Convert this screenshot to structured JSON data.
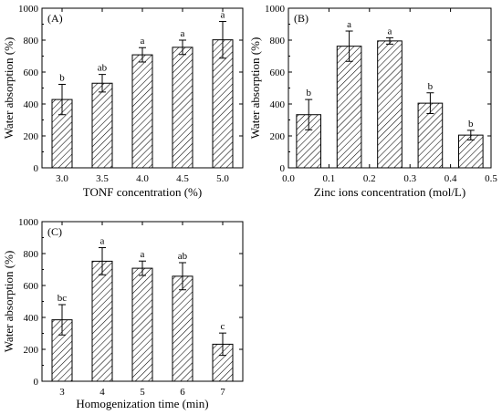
{
  "chart_data": [
    {
      "type": "bar",
      "panel_label": "(A)",
      "xlabel": "TONF concentration (%)",
      "ylabel": "Water absorption (%)",
      "x_numeric": false,
      "categories": [
        "3.0",
        "3.5",
        "4.0",
        "4.5",
        "5.0"
      ],
      "values": [
        428,
        530,
        708,
        755,
        802
      ],
      "errors": [
        95,
        55,
        45,
        45,
        115
      ],
      "letters": [
        "b",
        "ab",
        "a",
        "a",
        "a"
      ],
      "ylim": [
        0,
        1000
      ],
      "yticks": [
        0,
        200,
        400,
        600,
        800,
        1000
      ],
      "grid": false,
      "bar_fill": "#ffffff",
      "hatch_color": "#000000"
    },
    {
      "type": "bar",
      "panel_label": "(B)",
      "xlabel": "Zinc ions concentration (mol/L)",
      "ylabel": "Water absorption (%)",
      "x_numeric": true,
      "x": [
        0.05,
        0.15,
        0.25,
        0.35,
        0.45
      ],
      "xlim": [
        0.0,
        0.5
      ],
      "xticks": [
        "0.0",
        "0.1",
        "0.2",
        "0.3",
        "0.4",
        "0.5"
      ],
      "bar_width": 0.06,
      "values": [
        333,
        762,
        795,
        405,
        205
      ],
      "errors": [
        95,
        95,
        20,
        65,
        30
      ],
      "letters": [
        "b",
        "a",
        "a",
        "b",
        "b"
      ],
      "ylim": [
        0,
        1000
      ],
      "yticks": [
        0,
        200,
        400,
        600,
        800,
        1000
      ],
      "grid": false,
      "bar_fill": "#ffffff",
      "hatch_color": "#000000"
    },
    {
      "type": "bar",
      "panel_label": "(C)",
      "xlabel": "Homogenization time (min)",
      "ylabel": "Water absorption (%)",
      "x_numeric": false,
      "categories": [
        "3",
        "4",
        "5",
        "6",
        "7"
      ],
      "values": [
        385,
        752,
        708,
        658,
        232
      ],
      "errors": [
        95,
        85,
        45,
        85,
        70
      ],
      "letters": [
        "bc",
        "a",
        "a",
        "ab",
        "c"
      ],
      "ylim": [
        0,
        1000
      ],
      "yticks": [
        0,
        200,
        400,
        600,
        800,
        1000
      ],
      "grid": false,
      "bar_fill": "#ffffff",
      "hatch_color": "#000000"
    }
  ]
}
